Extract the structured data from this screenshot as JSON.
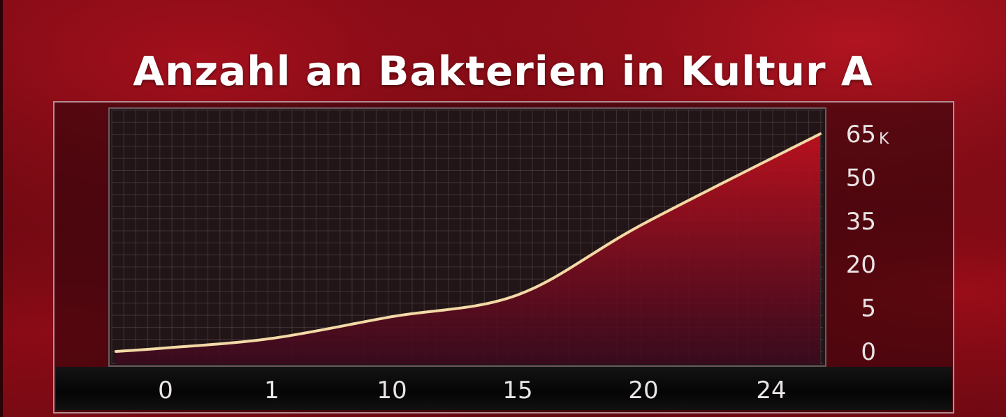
{
  "chart_data": {
    "type": "area",
    "title": "Anzahl an Bakterien in Kultur A",
    "xlabel": "",
    "ylabel": "",
    "x_tick_labels": [
      "0",
      "1",
      "10",
      "15",
      "20",
      "24"
    ],
    "y_tick_labels": [
      "65",
      "50",
      "35",
      "20",
      "5",
      "0"
    ],
    "y_unit": "K",
    "series": [
      {
        "x": [
          "0",
          "1",
          "10",
          "15",
          "20",
          "24"
        ],
        "values": [
          0.4,
          1.5,
          4,
          9.5,
          34,
          65
        ]
      }
    ],
    "grid": true,
    "y_axis_side": "right",
    "colors": {
      "line": "#f2d9a6",
      "area_top": "#c0101e",
      "area_bottom": "#3a0a1e",
      "grid": "#5a4a4e",
      "plot_bg": "#221517"
    }
  }
}
